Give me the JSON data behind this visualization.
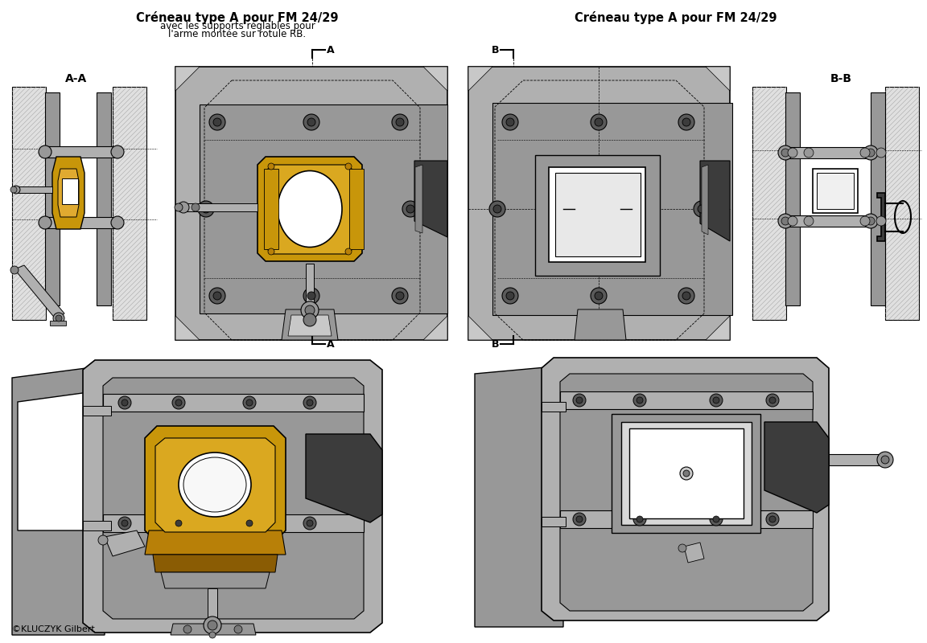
{
  "title_left": "Créneau type A pour FM 24/29",
  "subtitle_left_1": "avec les supports réglables pour",
  "subtitle_left_2": "l'arme montée sur rotule RB.",
  "title_right": "Créneau type A pour FM 24/29",
  "label_aa": "A-A",
  "label_bb": "B-B",
  "label_a_top": "A",
  "label_a_bot": "A",
  "label_b_top": "B",
  "label_b_bot": "B",
  "copyright": "©KLUCZYK Gilbert",
  "bg_color": "#ffffff",
  "panel_color": "#b0b0b0",
  "panel_light": "#c8c8c8",
  "panel_mid": "#989898",
  "panel_dark": "#7a7a7a",
  "panel_darker": "#5a5a5a",
  "panel_darkest": "#3c3c3c",
  "gold_color": "#c8960a",
  "gold_mid": "#b88008",
  "gold_dark": "#8a5c04",
  "wall_color": "#e0e0e0",
  "wall_dark": "#c0c0c0",
  "rod_color": "#b0b0b0",
  "black": "#000000",
  "white": "#ffffff",
  "near_black": "#1a1a1a",
  "title_fontsize": 10.5,
  "subtitle_fontsize": 8.5,
  "label_fontsize": 9.5,
  "copyright_fontsize": 8
}
